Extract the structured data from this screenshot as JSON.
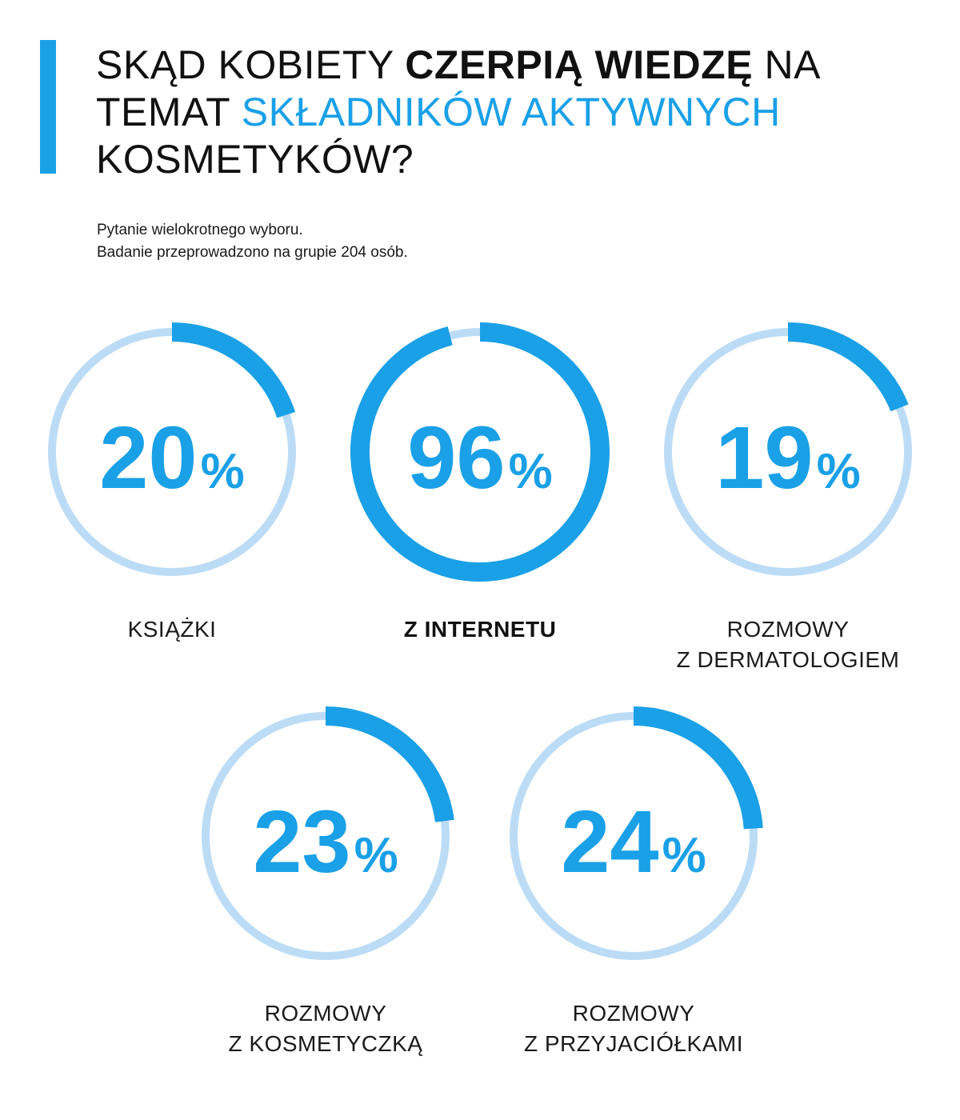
{
  "title": {
    "line1_pre": "SKĄD KOBIETY ",
    "line1_bold": "CZERPIĄ WIEDZĘ",
    "line1_post": " NA",
    "line2_pre": "TEMAT ",
    "line2_blue": "SKŁADNIKÓW AKTYWNYCH",
    "line3": "KOSMETYKÓW?"
  },
  "subtitle": {
    "line1": "Pytanie wielokrotnego wyboru.",
    "line2": "Badanie przeprowadzono na grupie 204 osób."
  },
  "colors": {
    "accent": "#1aa0e6",
    "track": "#bcdcf6",
    "text": "#111111"
  },
  "chart_data": {
    "type": "ring",
    "unit": "%",
    "items": [
      {
        "value": 20,
        "value_text": "20",
        "label_lines": [
          "KSIĄŻKI"
        ]
      },
      {
        "value": 96,
        "value_text": "96",
        "label_lines": [
          "Z INTERNETU"
        ]
      },
      {
        "value": 19,
        "value_text": "19",
        "label_lines": [
          "ROZMOWY",
          "Z DERMATOLOGIEM"
        ]
      },
      {
        "value": 23,
        "value_text": "23",
        "label_lines": [
          "ROZMOWY",
          "Z KOSMETYCZKĄ"
        ]
      },
      {
        "value": 24,
        "value_text": "24",
        "label_lines": [
          "ROZMOWY",
          "Z PRZYJACIÓŁKAMI"
        ]
      }
    ]
  }
}
